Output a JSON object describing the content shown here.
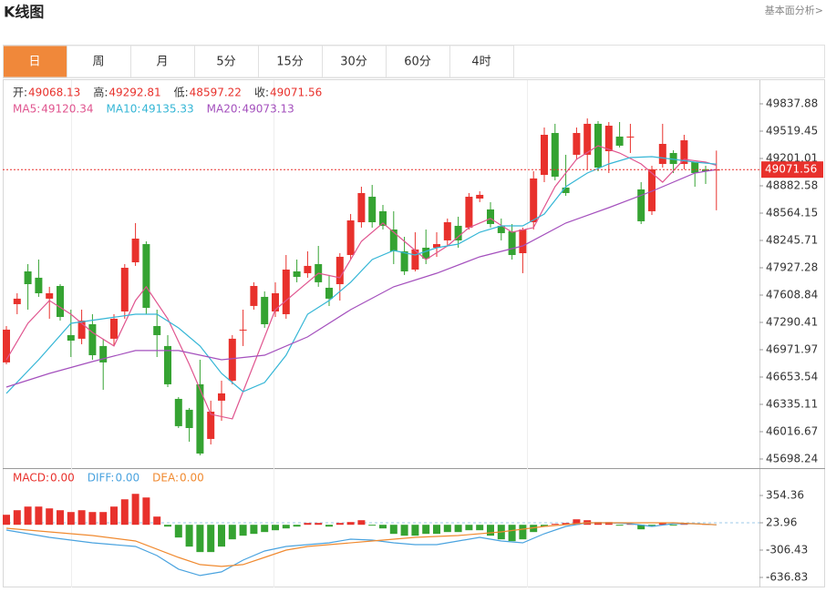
{
  "header": {
    "title": "K线图",
    "link": "基本面分析>"
  },
  "tabs": {
    "items": [
      "日",
      "周",
      "月",
      "5分",
      "15分",
      "30分",
      "60分",
      "4时"
    ],
    "active": 0
  },
  "chart_data": [
    {
      "type": "candlestick",
      "info": [
        {
          "label": "开:",
          "value": 49068.13
        },
        {
          "label": "高:",
          "value": 49292.81
        },
        {
          "label": "低:",
          "value": 48597.22
        },
        {
          "label": "收:",
          "value": 49071.56
        }
      ],
      "info_color": "#e8312c",
      "up_color": "#e8312c",
      "down_color": "#35a332",
      "open": [
        46824,
        47503,
        47885,
        47811,
        47567,
        47715,
        47142,
        47100,
        47269,
        47015,
        47100,
        47418,
        47991,
        48203,
        47248,
        47015,
        46399,
        46272,
        46569,
        45932,
        46378,
        46611,
        47206,
        47482,
        47588,
        47418,
        47386,
        47885,
        47864,
        47970,
        47694,
        47736,
        48076,
        48458,
        48755,
        48586,
        48373,
        48119,
        47906,
        48161,
        48161,
        48246,
        48416,
        48395,
        48734,
        48607,
        48416,
        48352,
        48097,
        48458,
        49010,
        49498,
        48862,
        49244,
        49244,
        49605,
        49286,
        49456,
        49456,
        48840,
        48586,
        49137,
        49265,
        49137,
        49159,
        49074,
        49068.13
      ],
      "high": [
        47248,
        47630,
        47970,
        48023,
        47705,
        47736,
        47439,
        47439,
        47386,
        47100,
        47386,
        47970,
        48448,
        48235,
        47439,
        47142,
        46420,
        46293,
        46855,
        46378,
        46611,
        47142,
        47439,
        47758,
        47652,
        47758,
        48076,
        48023,
        48119,
        48182,
        47843,
        48097,
        48554,
        48872,
        48893,
        48660,
        48586,
        48288,
        48341,
        48373,
        48341,
        48501,
        48522,
        48798,
        48819,
        48692,
        48501,
        48437,
        48395,
        49053,
        49562,
        49605,
        49244,
        49562,
        49668,
        49636,
        49626,
        49626,
        49605,
        48925,
        49116,
        49605,
        49297,
        49477,
        49159,
        49116,
        49292.81
      ],
      "low": [
        46802,
        47386,
        47439,
        47588,
        47333,
        47312,
        46887,
        47036,
        46855,
        46505,
        47015,
        47333,
        47949,
        47386,
        46887,
        46537,
        46059,
        45900,
        45741,
        45868,
        46144,
        46569,
        47015,
        47439,
        47227,
        47354,
        47333,
        47758,
        47811,
        47705,
        47482,
        47545,
        48023,
        48395,
        48395,
        48373,
        47970,
        47843,
        47885,
        47970,
        48055,
        48182,
        48161,
        48373,
        48692,
        48395,
        48246,
        48023,
        47864,
        48373,
        48925,
        48946,
        48766,
        49191,
        49074,
        49053,
        49031,
        49329,
        49265,
        48437,
        48543,
        49095,
        49031,
        49074,
        48872,
        48904,
        48597.22
      ],
      "close": [
        47206,
        47567,
        47736,
        47630,
        47630,
        47354,
        47078,
        47312,
        46908,
        46824,
        47333,
        47927,
        48267,
        47460,
        47142,
        46569,
        46081,
        46059,
        45762,
        46250,
        46463,
        47100,
        47206,
        47715,
        47269,
        47630,
        47906,
        47821,
        47949,
        47758,
        47567,
        48055,
        48479,
        48798,
        48458,
        48416,
        48119,
        47885,
        48140,
        48034,
        48203,
        48458,
        48246,
        48755,
        48777,
        48437,
        48331,
        48076,
        48373,
        48968,
        49477,
        48989,
        48798,
        49498,
        49605,
        49095,
        49583,
        49350,
        49456,
        48469,
        49074,
        49371,
        49137,
        49413,
        49031,
        49053,
        49071.56
      ],
      "ylim": [
        45613,
        50114
      ],
      "yticks": [
        49837.88,
        49519.45,
        49201.01,
        48882.58,
        48564.15,
        48245.71,
        47927.28,
        47608.84,
        47290.41,
        46971.97,
        46653.54,
        46335.11,
        46016.67,
        45698.24
      ],
      "grid": false,
      "last_price_color": "#e8312c",
      "ma": [
        {
          "name": "MA5:",
          "last": 49120.34,
          "color": "#e0558f",
          "x": [
            0,
            2,
            4,
            6,
            8,
            10,
            12,
            13,
            15,
            17,
            19,
            21,
            23,
            25,
            27,
            29,
            31,
            33,
            35,
            37,
            39,
            41,
            43,
            45,
            47,
            49,
            51,
            53,
            55,
            57,
            59,
            61,
            63,
            65,
            66
          ],
          "values": [
            46855,
            47280,
            47545,
            47386,
            47174,
            47015,
            47545,
            47705,
            47333,
            46802,
            46219,
            46166,
            46802,
            47439,
            47652,
            47864,
            47811,
            48235,
            48448,
            48235,
            48023,
            48182,
            48395,
            48501,
            48341,
            48395,
            48872,
            49191,
            49350,
            49265,
            49137,
            48925,
            49191,
            49159,
            49120.34
          ]
        },
        {
          "name": "MA10:",
          "last": 49135.33,
          "color": "#35b6d6",
          "x": [
            0,
            3,
            6,
            9,
            12,
            14,
            16,
            18,
            20,
            22,
            24,
            26,
            28,
            30,
            32,
            34,
            36,
            38,
            40,
            42,
            44,
            46,
            48,
            50,
            52,
            54,
            56,
            58,
            60,
            62,
            64,
            66
          ],
          "values": [
            46463,
            46855,
            47280,
            47333,
            47386,
            47386,
            47227,
            47015,
            46696,
            46484,
            46590,
            46908,
            47386,
            47545,
            47758,
            48023,
            48129,
            48076,
            48161,
            48203,
            48341,
            48416,
            48416,
            48554,
            48872,
            49031,
            49137,
            49212,
            49222,
            49191,
            49159,
            49135.33
          ]
        },
        {
          "name": "MA20:",
          "last": 49073.13,
          "color": "#a450bd",
          "x": [
            0,
            4,
            8,
            12,
            16,
            20,
            24,
            28,
            32,
            36,
            40,
            44,
            48,
            52,
            56,
            60,
            64,
            66
          ],
          "values": [
            46537,
            46696,
            46834,
            46962,
            46962,
            46855,
            46908,
            47121,
            47439,
            47705,
            47864,
            48055,
            48182,
            48448,
            48628,
            48819,
            49031,
            49073.13
          ]
        }
      ]
    },
    {
      "type": "macd",
      "legend": [
        {
          "label": "MACD:",
          "value": 0,
          "value_label": "0.00",
          "color": "#e8312c"
        },
        {
          "label": "DIFF:",
          "value": 0,
          "value_label": "0.00",
          "color": "#4aa3df"
        },
        {
          "label": "DEA:",
          "value": 0,
          "value_label": "0.00",
          "color": "#f08a30"
        }
      ],
      "up_color": "#e8312c",
      "down_color": "#35a332",
      "hist": [
        121,
        176,
        220,
        220,
        198,
        176,
        154,
        176,
        154,
        154,
        220,
        308,
        374,
        330,
        99,
        -22,
        -154,
        -264,
        -330,
        -330,
        -264,
        -176,
        -132,
        -110,
        -88,
        -66,
        -44,
        -22,
        22,
        22,
        -22,
        22,
        33,
        55,
        -11,
        -44,
        -110,
        -132,
        -132,
        -110,
        -110,
        -88,
        -88,
        -66,
        -66,
        -132,
        -176,
        -198,
        -176,
        -88,
        -22,
        11,
        22,
        66,
        55,
        33,
        33,
        -11,
        11,
        -55,
        -22,
        22,
        -11,
        22,
        0,
        11,
        0
      ],
      "diff": {
        "color": "#4aa3df",
        "x": [
          0,
          4,
          8,
          10,
          12,
          14,
          16,
          18,
          20,
          22,
          24,
          26,
          28,
          30,
          32,
          34,
          36,
          38,
          40,
          42,
          44,
          46,
          48,
          50,
          52,
          54,
          56,
          58,
          60,
          62,
          64,
          66
        ],
        "values": [
          -64,
          -152,
          -218,
          -240,
          -262,
          -372,
          -537,
          -614,
          -570,
          -427,
          -317,
          -262,
          -240,
          -218,
          -174,
          -185,
          -218,
          -240,
          -240,
          -196,
          -152,
          -196,
          -218,
          -108,
          -20,
          24,
          24,
          13,
          -20,
          13,
          13,
          0
        ]
      },
      "dea": {
        "color": "#f08a30",
        "x": [
          0,
          4,
          8,
          12,
          16,
          18,
          20,
          22,
          24,
          26,
          28,
          30,
          34,
          38,
          42,
          46,
          50,
          54,
          58,
          62,
          66
        ],
        "values": [
          -42,
          -86,
          -130,
          -196,
          -394,
          -482,
          -504,
          -482,
          -394,
          -306,
          -262,
          -240,
          -196,
          -152,
          -130,
          -86,
          -20,
          24,
          24,
          24,
          0
        ]
      },
      "ylim": [
        -758,
        674
      ],
      "yticks": [
        354.36,
        23.96,
        -306.43,
        -636.83
      ]
    }
  ]
}
